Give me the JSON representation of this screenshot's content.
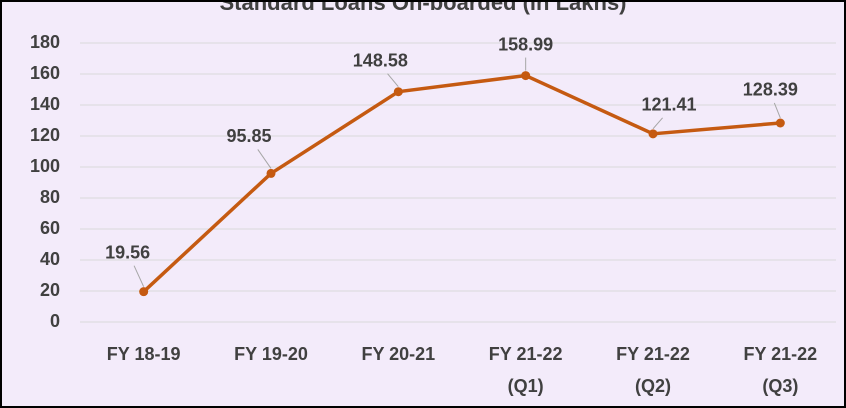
{
  "chart_data": {
    "type": "line",
    "title": "Standard Loans On-boarded (in Lakhs)",
    "categories": [
      "FY 18-19",
      "FY 19-20",
      "FY 20-21",
      "FY 21-22 (Q1)",
      "FY 21-22 (Q2)",
      "FY 21-22 (Q3)"
    ],
    "series": [
      {
        "name": "Standard Loans On-boarded",
        "color": "#c55a11",
        "values": [
          19.56,
          95.85,
          148.58,
          158.99,
          121.41,
          128.39
        ]
      }
    ],
    "ylim": [
      0,
      180
    ],
    "yticks": [
      0,
      20,
      40,
      60,
      80,
      100,
      120,
      140,
      160,
      180
    ],
    "grid": true
  }
}
